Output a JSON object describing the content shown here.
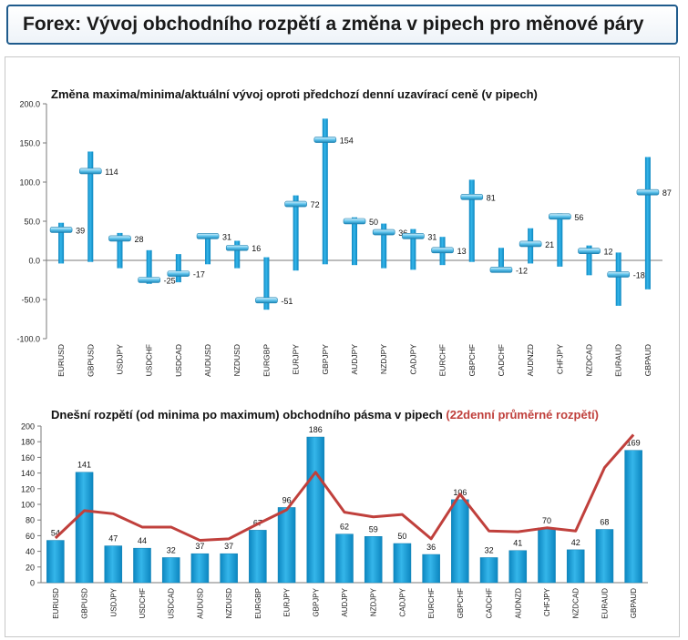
{
  "header": {
    "title": "Forex: Vývoj obchodního rozpětí a změna v pipech pro měnové páry"
  },
  "colors": {
    "bar": "#1aa0d8",
    "bar_dark": "#0f7fb2",
    "avg_line": "#c0403c",
    "avg_label": "#c0403c",
    "header_border": "#1f5b8c"
  },
  "chart_data": [
    {
      "type": "bar",
      "subtype": "high-low-current",
      "title": "Změna maxima/minima/aktuální vývoj oproti předchozí denní uzavírací ceně (v pipech)",
      "categories": [
        "EURUSD",
        "GBPUSD",
        "USDJPY",
        "USDCHF",
        "USDCAD",
        "AUDUSD",
        "NZDUSD",
        "EURGBP",
        "EURJPY",
        "GBPJPY",
        "AUDJPY",
        "NZDJPY",
        "CADJPY",
        "EURCHF",
        "GBPCHF",
        "CADCHF",
        "AUDNZD",
        "CHFJPY",
        "NZDCAD",
        "EURAUD",
        "GBPAUD"
      ],
      "high": [
        48,
        139,
        35,
        13,
        8,
        32,
        25,
        4,
        83,
        181,
        55,
        47,
        40,
        30,
        103,
        16,
        41,
        60,
        19,
        10,
        132
      ],
      "low": [
        -4,
        -2,
        -10,
        -30,
        -28,
        -5,
        -10,
        -63,
        -13,
        -5,
        -6,
        -10,
        -12,
        -6,
        -2,
        -14,
        -4,
        -8,
        -19,
        -58,
        -37
      ],
      "current": [
        39,
        114,
        28,
        -25,
        -17,
        31,
        16,
        -51,
        72,
        154,
        50,
        36,
        31,
        13,
        81,
        -12,
        21,
        56,
        12,
        -18,
        87
      ],
      "labels": [
        "39",
        "114",
        "28",
        "-25",
        "-17",
        "31",
        "16",
        "-51",
        "72",
        "154",
        "50",
        "36",
        "31",
        "13",
        "81",
        "-12",
        "21",
        "56",
        "12",
        "-18",
        "87"
      ],
      "ylim": [
        -100,
        200
      ],
      "yticks": [
        "200.0",
        "150.0",
        "100.0",
        "50.0",
        "0.0",
        "-50.0",
        "-100.0"
      ],
      "grid": false
    },
    {
      "type": "bar",
      "title": "Dnešní rozpětí (od minima po maximum) obchodního pásma v pipech",
      "title_highlight": "(22denní průměrné rozpětí)",
      "categories": [
        "EURUSD",
        "GBPUSD",
        "USDJPY",
        "USDCHF",
        "USDCAD",
        "AUDUSD",
        "NZDUSD",
        "EURGBP",
        "EURJPY",
        "GBPJPY",
        "AUDJPY",
        "NZDJPY",
        "CADJPY",
        "EURCHF",
        "GBPCHF",
        "CADCHF",
        "AUDNZD",
        "CHFJPY",
        "NZDCAD",
        "EURAUD",
        "GBPAUD"
      ],
      "values": [
        54,
        141,
        47,
        44,
        32,
        37,
        37,
        67,
        96,
        186,
        62,
        59,
        50,
        36,
        106,
        32,
        41,
        70,
        42,
        68,
        169
      ],
      "labels": [
        "54",
        "141",
        "47",
        "44",
        "32",
        "37",
        "37",
        "67",
        "96",
        "186",
        "62",
        "59",
        "50",
        "36",
        "106",
        "32",
        "41",
        "70",
        "42",
        "68",
        "169"
      ],
      "avg_range": [
        57,
        92,
        88,
        71,
        71,
        54,
        56,
        75,
        93,
        141,
        90,
        84,
        87,
        56,
        113,
        66,
        65,
        70,
        66,
        147,
        189
      ],
      "ylim": [
        0,
        200
      ],
      "yticks": [
        "200",
        "180",
        "160",
        "140",
        "120",
        "100",
        "80",
        "60",
        "40",
        "20",
        "0"
      ],
      "grid": false
    }
  ]
}
